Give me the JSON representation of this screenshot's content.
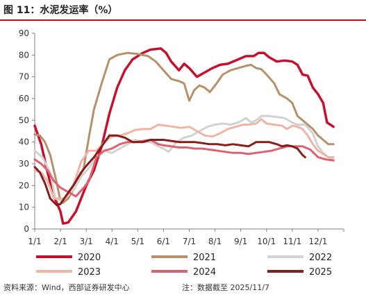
{
  "figure": {
    "title": "图 11：水泥发运率（%）",
    "source": "资料来源：Wind，西部证券研发中心",
    "note": "注：数据截至 2025/11/7"
  },
  "chart_data": {
    "type": "line",
    "title": "",
    "xlabel": "",
    "ylabel": "",
    "x_ticks": [
      "1/1",
      "2/1",
      "3/1",
      "4/1",
      "5/1",
      "6/1",
      "7/1",
      "8/1",
      "9/1",
      "10/1",
      "11/1",
      "12/1"
    ],
    "xlim": [
      0,
      12
    ],
    "ylim": [
      0,
      90
    ],
    "y_ticks": [
      0,
      10,
      20,
      30,
      40,
      50,
      60,
      70,
      80,
      90
    ],
    "grid": false,
    "legend": "bottom",
    "series": [
      {
        "name": "2020",
        "color": "#c8102e",
        "width": 3.5,
        "points": [
          [
            0.0,
            47.5
          ],
          [
            0.25,
            39
          ],
          [
            0.5,
            26
          ],
          [
            0.75,
            15
          ],
          [
            1.0,
            8
          ],
          [
            1.1,
            2.5
          ],
          [
            1.3,
            3
          ],
          [
            1.6,
            8
          ],
          [
            2.0,
            20
          ],
          [
            2.3,
            27
          ],
          [
            2.6,
            38
          ],
          [
            2.9,
            53
          ],
          [
            3.2,
            65
          ],
          [
            3.5,
            73
          ],
          [
            3.8,
            78
          ],
          [
            4.2,
            81
          ],
          [
            4.5,
            82.5
          ],
          [
            4.9,
            83
          ],
          [
            5.1,
            81
          ],
          [
            5.3,
            77
          ],
          [
            5.6,
            73
          ],
          [
            5.8,
            76
          ],
          [
            6.0,
            74
          ],
          [
            6.3,
            70
          ],
          [
            6.6,
            72
          ],
          [
            6.9,
            74
          ],
          [
            7.2,
            75.5
          ],
          [
            7.5,
            76
          ],
          [
            7.9,
            78
          ],
          [
            8.2,
            79.5
          ],
          [
            8.5,
            79.5
          ],
          [
            8.7,
            81
          ],
          [
            8.9,
            81
          ],
          [
            9.1,
            79
          ],
          [
            9.4,
            77
          ],
          [
            9.7,
            77.5
          ],
          [
            10.0,
            77
          ],
          [
            10.2,
            75.5
          ],
          [
            10.4,
            71
          ],
          [
            10.6,
            70.5
          ],
          [
            10.8,
            65
          ],
          [
            11.0,
            62
          ],
          [
            11.2,
            58
          ],
          [
            11.35,
            49
          ],
          [
            11.6,
            47
          ]
        ]
      },
      {
        "name": "2021",
        "color": "#b6906a",
        "width": 3,
        "points": [
          [
            0.0,
            43.5
          ],
          [
            0.2,
            43
          ],
          [
            0.4,
            40
          ],
          [
            0.6,
            34
          ],
          [
            0.8,
            24
          ],
          [
            1.0,
            13
          ],
          [
            1.1,
            12
          ],
          [
            1.3,
            14
          ],
          [
            1.6,
            20
          ],
          [
            1.9,
            28
          ],
          [
            2.1,
            42
          ],
          [
            2.3,
            55
          ],
          [
            2.6,
            67
          ],
          [
            2.9,
            78
          ],
          [
            3.2,
            80
          ],
          [
            3.6,
            81
          ],
          [
            4.0,
            80.5
          ],
          [
            4.4,
            79.5
          ],
          [
            4.7,
            77
          ],
          [
            5.0,
            73
          ],
          [
            5.3,
            69
          ],
          [
            5.6,
            68
          ],
          [
            5.8,
            67
          ],
          [
            6.0,
            59
          ],
          [
            6.2,
            64
          ],
          [
            6.4,
            66
          ],
          [
            6.6,
            65
          ],
          [
            6.8,
            63
          ],
          [
            7.0,
            66
          ],
          [
            7.3,
            71
          ],
          [
            7.6,
            73
          ],
          [
            7.9,
            74
          ],
          [
            8.2,
            75
          ],
          [
            8.4,
            75.5
          ],
          [
            8.6,
            74
          ],
          [
            8.8,
            73.5
          ],
          [
            9.0,
            71
          ],
          [
            9.3,
            67
          ],
          [
            9.5,
            62
          ],
          [
            9.8,
            60
          ],
          [
            10.0,
            58
          ],
          [
            10.2,
            52
          ],
          [
            10.4,
            50
          ],
          [
            10.6,
            48
          ],
          [
            10.8,
            46
          ],
          [
            11.0,
            43
          ],
          [
            11.2,
            41
          ],
          [
            11.4,
            39
          ],
          [
            11.6,
            39
          ]
        ]
      },
      {
        "name": "2022",
        "color": "#d2d2d2",
        "width": 3,
        "points": [
          [
            0.0,
            36
          ],
          [
            0.3,
            33
          ],
          [
            0.6,
            26
          ],
          [
            0.8,
            14
          ],
          [
            1.0,
            13
          ],
          [
            1.2,
            14
          ],
          [
            1.5,
            18
          ],
          [
            1.8,
            24
          ],
          [
            2.1,
            28
          ],
          [
            2.4,
            33
          ],
          [
            2.7,
            36
          ],
          [
            3.0,
            35
          ],
          [
            3.3,
            37
          ],
          [
            3.6,
            39
          ],
          [
            3.9,
            41
          ],
          [
            4.2,
            40
          ],
          [
            4.5,
            40
          ],
          [
            4.8,
            38
          ],
          [
            5.0,
            37
          ],
          [
            5.2,
            35.5
          ],
          [
            5.5,
            40
          ],
          [
            5.8,
            42
          ],
          [
            6.1,
            43
          ],
          [
            6.4,
            45
          ],
          [
            6.7,
            47
          ],
          [
            7.0,
            48
          ],
          [
            7.3,
            48.5
          ],
          [
            7.6,
            48
          ],
          [
            7.9,
            49
          ],
          [
            8.2,
            51
          ],
          [
            8.4,
            49
          ],
          [
            8.6,
            50
          ],
          [
            8.8,
            52
          ],
          [
            9.1,
            52
          ],
          [
            9.4,
            51.5
          ],
          [
            9.7,
            51
          ],
          [
            10.0,
            49
          ],
          [
            10.2,
            48
          ],
          [
            10.5,
            48
          ],
          [
            10.8,
            44
          ],
          [
            11.0,
            38
          ],
          [
            11.2,
            35
          ],
          [
            11.4,
            33
          ],
          [
            11.6,
            32
          ]
        ]
      },
      {
        "name": "2023",
        "color": "#f0b4a6",
        "width": 3,
        "points": [
          [
            0.0,
            27
          ],
          [
            0.25,
            26
          ],
          [
            0.5,
            22
          ],
          [
            0.75,
            14
          ],
          [
            1.0,
            14
          ],
          [
            1.2,
            14
          ],
          [
            1.5,
            20
          ],
          [
            1.8,
            31
          ],
          [
            2.1,
            36
          ],
          [
            2.4,
            36
          ],
          [
            2.7,
            40
          ],
          [
            3.0,
            42.5
          ],
          [
            3.3,
            43
          ],
          [
            3.6,
            44
          ],
          [
            3.9,
            45.5
          ],
          [
            4.2,
            46
          ],
          [
            4.5,
            46
          ],
          [
            4.8,
            48
          ],
          [
            5.1,
            47.5
          ],
          [
            5.4,
            47
          ],
          [
            5.7,
            46.5
          ],
          [
            6.0,
            47
          ],
          [
            6.3,
            45
          ],
          [
            6.6,
            43
          ],
          [
            6.9,
            42.5
          ],
          [
            7.2,
            44
          ],
          [
            7.5,
            46
          ],
          [
            7.8,
            47
          ],
          [
            8.1,
            48
          ],
          [
            8.3,
            48
          ],
          [
            8.6,
            48.5
          ],
          [
            8.8,
            50.5
          ],
          [
            9.0,
            48.5
          ],
          [
            9.3,
            48
          ],
          [
            9.6,
            47.5
          ],
          [
            9.8,
            46
          ],
          [
            10.0,
            47.5
          ],
          [
            10.2,
            47
          ],
          [
            10.4,
            46
          ],
          [
            10.6,
            43
          ],
          [
            10.8,
            39
          ],
          [
            11.0,
            36
          ],
          [
            11.2,
            34.5
          ],
          [
            11.4,
            33
          ],
          [
            11.6,
            33
          ]
        ]
      },
      {
        "name": "2024",
        "color": "#e06070",
        "width": 3,
        "points": [
          [
            0.0,
            32
          ],
          [
            0.25,
            30
          ],
          [
            0.5,
            27
          ],
          [
            0.75,
            22
          ],
          [
            1.0,
            19
          ],
          [
            1.3,
            17
          ],
          [
            1.6,
            15
          ],
          [
            1.9,
            19
          ],
          [
            2.1,
            22
          ],
          [
            2.4,
            33
          ],
          [
            2.7,
            36
          ],
          [
            3.0,
            37
          ],
          [
            3.3,
            39
          ],
          [
            3.6,
            40
          ],
          [
            3.9,
            40
          ],
          [
            4.2,
            40.5
          ],
          [
            4.5,
            41
          ],
          [
            4.8,
            39
          ],
          [
            5.0,
            38.5
          ],
          [
            5.3,
            38
          ],
          [
            5.6,
            37.5
          ],
          [
            5.9,
            37.5
          ],
          [
            6.2,
            37
          ],
          [
            6.5,
            37
          ],
          [
            6.8,
            36.5
          ],
          [
            7.1,
            36
          ],
          [
            7.4,
            35.5
          ],
          [
            7.7,
            35
          ],
          [
            8.0,
            35
          ],
          [
            8.3,
            34.5
          ],
          [
            8.6,
            35
          ],
          [
            8.9,
            35.5
          ],
          [
            9.2,
            36
          ],
          [
            9.5,
            37
          ],
          [
            9.8,
            38
          ],
          [
            10.1,
            38
          ],
          [
            10.4,
            38
          ],
          [
            10.7,
            36.5
          ],
          [
            11.0,
            33
          ],
          [
            11.3,
            32
          ],
          [
            11.6,
            31.5
          ]
        ]
      },
      {
        "name": "2025",
        "color": "#8b1a1a",
        "width": 3,
        "points": [
          [
            0.0,
            28.5
          ],
          [
            0.2,
            26
          ],
          [
            0.4,
            21
          ],
          [
            0.6,
            14
          ],
          [
            0.85,
            11
          ],
          [
            1.0,
            11.5
          ],
          [
            1.2,
            15
          ],
          [
            1.5,
            20
          ],
          [
            1.8,
            26
          ],
          [
            2.0,
            29
          ],
          [
            2.3,
            33
          ],
          [
            2.6,
            38
          ],
          [
            2.9,
            43
          ],
          [
            3.2,
            43
          ],
          [
            3.5,
            42
          ],
          [
            3.8,
            40
          ],
          [
            4.0,
            40
          ],
          [
            4.2,
            40
          ],
          [
            4.5,
            41
          ],
          [
            4.8,
            41
          ],
          [
            5.0,
            41
          ],
          [
            5.3,
            40.5
          ],
          [
            5.6,
            40
          ],
          [
            5.9,
            40
          ],
          [
            6.2,
            40
          ],
          [
            6.5,
            39.5
          ],
          [
            6.8,
            39
          ],
          [
            7.1,
            39
          ],
          [
            7.4,
            38.5
          ],
          [
            7.7,
            39
          ],
          [
            8.0,
            38.5
          ],
          [
            8.3,
            38
          ],
          [
            8.6,
            40
          ],
          [
            8.9,
            40
          ],
          [
            9.1,
            40
          ],
          [
            9.4,
            39
          ],
          [
            9.6,
            38
          ],
          [
            9.8,
            38.5
          ],
          [
            10.0,
            38
          ],
          [
            10.2,
            37
          ],
          [
            10.4,
            34
          ],
          [
            10.5,
            33
          ]
        ]
      }
    ]
  }
}
